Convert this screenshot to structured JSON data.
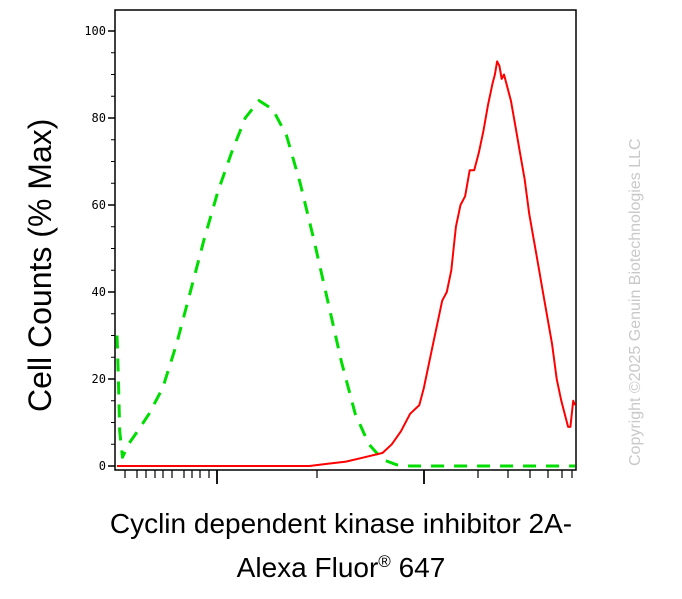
{
  "chart_data": {
    "type": "line",
    "ylabel": "Cell Counts (% Max)",
    "xlabel_line1": "Cyclin dependent kinase inhibitor 2A-",
    "xlabel_line2_main": "Alexa Fluor",
    "xlabel_line2_sup": "®",
    "xlabel_line2_end": " 647",
    "ylim": [
      0,
      105
    ],
    "yticks": [
      0,
      20,
      40,
      60,
      80,
      100
    ],
    "ytick_labels": [
      "0",
      "20",
      "40",
      "60",
      "80",
      "100"
    ],
    "x_scale": "logicle (no tick labels)",
    "watermark": "Copyright ©2025 Genuin Biotechnologies LLC",
    "series": [
      {
        "color": "#00dd00",
        "dash": "dashed",
        "points": [
          [
            0,
            30
          ],
          [
            0.3,
            20
          ],
          [
            0.6,
            8
          ],
          [
            1.2,
            2
          ],
          [
            2.5,
            5
          ],
          [
            4.5,
            8
          ],
          [
            7,
            12
          ],
          [
            10,
            18
          ],
          [
            13,
            28
          ],
          [
            16,
            40
          ],
          [
            19,
            52
          ],
          [
            22,
            63
          ],
          [
            25,
            72
          ],
          [
            28,
            80
          ],
          [
            31,
            84
          ],
          [
            34,
            82
          ],
          [
            37,
            76
          ],
          [
            40,
            65
          ],
          [
            43,
            52
          ],
          [
            46,
            38
          ],
          [
            49,
            24
          ],
          [
            52,
            12
          ],
          [
            55,
            5
          ],
          [
            58,
            1.5
          ],
          [
            61,
            0.3
          ],
          [
            64,
            0
          ],
          [
            100,
            0
          ]
        ]
      },
      {
        "color": "#ff0000",
        "dash": "solid",
        "points": [
          [
            0,
            0
          ],
          [
            42,
            0
          ],
          [
            46,
            0.5
          ],
          [
            50,
            1
          ],
          [
            54,
            2
          ],
          [
            58,
            3
          ],
          [
            60,
            5
          ],
          [
            62,
            8
          ],
          [
            64,
            12
          ],
          [
            66,
            14
          ],
          [
            67,
            18
          ],
          [
            69,
            28
          ],
          [
            71,
            38
          ],
          [
            72,
            40
          ],
          [
            73,
            45
          ],
          [
            74,
            55
          ],
          [
            75,
            60
          ],
          [
            76,
            62
          ],
          [
            77,
            68
          ],
          [
            78,
            68
          ],
          [
            79,
            72
          ],
          [
            80,
            77
          ],
          [
            81,
            83
          ],
          [
            82,
            88
          ],
          [
            82.5,
            90
          ],
          [
            83,
            93
          ],
          [
            83.5,
            92
          ],
          [
            84,
            89
          ],
          [
            84.5,
            90
          ],
          [
            85,
            88
          ],
          [
            86,
            84
          ],
          [
            87,
            78
          ],
          [
            88,
            72
          ],
          [
            89,
            66
          ],
          [
            90,
            58
          ],
          [
            91,
            52
          ],
          [
            92,
            46
          ],
          [
            93,
            40
          ],
          [
            94,
            34
          ],
          [
            95,
            28
          ],
          [
            96,
            20
          ],
          [
            97,
            15
          ],
          [
            98,
            11
          ],
          [
            98.5,
            9
          ],
          [
            99,
            9
          ],
          [
            99.3,
            12
          ],
          [
            99.6,
            15
          ],
          [
            100,
            14
          ]
        ]
      }
    ]
  }
}
